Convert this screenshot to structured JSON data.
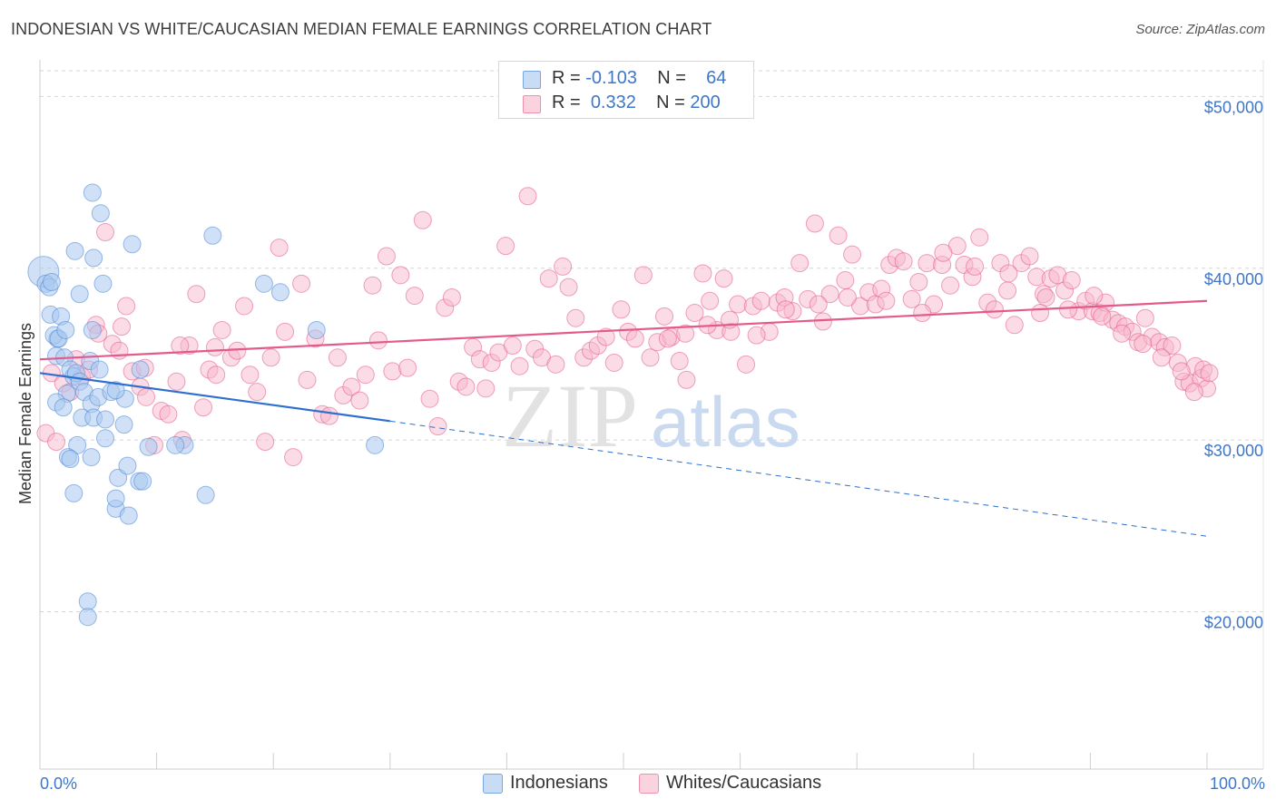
{
  "title": "INDONESIAN VS WHITE/CAUCASIAN MEDIAN FEMALE EARNINGS CORRELATION CHART",
  "source": "Source: ZipAtlas.com",
  "watermark": {
    "zip": "ZIP",
    "atlas": "atlas"
  },
  "legend": {
    "rows": [
      {
        "r_label": "R =",
        "r_value": "-0.103",
        "n_label": "N =",
        "n_value": "64",
        "color": "#a9c8f0"
      },
      {
        "r_label": "R =",
        "r_value": "0.332",
        "n_label": "N =",
        "n_value": "200",
        "color": "#f7b8cb"
      }
    ]
  },
  "bottom_legend": [
    {
      "label": "Indonesians",
      "color": "#a9c8f0"
    },
    {
      "label": "Whites/Caucasians",
      "color": "#f7b8cb"
    }
  ],
  "chart_data": {
    "type": "scatter",
    "title": "INDONESIAN VS WHITE/CAUCASIAN MEDIAN FEMALE EARNINGS CORRELATION CHART",
    "xlabel": "",
    "ylabel": "Median Female Earnings",
    "xlim": [
      0,
      100
    ],
    "ylim": [
      11000,
      51500
    ],
    "x_tick_labels": [
      "0.0%",
      "100.0%"
    ],
    "y_ticks": [
      20000,
      30000,
      40000,
      50000
    ],
    "y_tick_labels": [
      "$20,000",
      "$30,000",
      "$40,000",
      "$50,000"
    ],
    "grid": true,
    "legend_position": "top-center",
    "series": [
      {
        "name": "Indonesians",
        "color": "#4a86d4",
        "fill": "#a9c8f0",
        "trend": {
          "x0": 0,
          "y0": 33900,
          "x1": 30,
          "y1": 31100,
          "dash_to_x": 100,
          "dash_to_y": 24400
        },
        "points": [
          [
            0.3,
            39800
          ],
          [
            0.5,
            39100
          ],
          [
            0.8,
            38900
          ],
          [
            1.0,
            39200
          ],
          [
            0.9,
            37300
          ],
          [
            1.5,
            35900
          ],
          [
            1.8,
            37200
          ],
          [
            1.2,
            36100
          ],
          [
            1.6,
            35900
          ],
          [
            1.4,
            34900
          ],
          [
            2.1,
            34800
          ],
          [
            2.6,
            34100
          ],
          [
            2.9,
            33700
          ],
          [
            3.1,
            33900
          ],
          [
            3.4,
            33400
          ],
          [
            2.3,
            32700
          ],
          [
            1.4,
            32200
          ],
          [
            2.0,
            31900
          ],
          [
            3.8,
            32800
          ],
          [
            4.4,
            32100
          ],
          [
            5.0,
            32500
          ],
          [
            6.1,
            32800
          ],
          [
            3.6,
            31300
          ],
          [
            4.6,
            31300
          ],
          [
            5.6,
            31200
          ],
          [
            7.3,
            32400
          ],
          [
            8.6,
            34100
          ],
          [
            3.2,
            29700
          ],
          [
            2.4,
            29000
          ],
          [
            2.6,
            28900
          ],
          [
            7.2,
            30900
          ],
          [
            5.6,
            30100
          ],
          [
            9.3,
            29600
          ],
          [
            12.4,
            29700
          ],
          [
            4.5,
            36400
          ],
          [
            2.2,
            36400
          ],
          [
            2.9,
            26900
          ],
          [
            6.5,
            26000
          ],
          [
            7.6,
            25600
          ],
          [
            6.7,
            27800
          ],
          [
            8.5,
            27600
          ],
          [
            6.5,
            26600
          ],
          [
            8.8,
            27600
          ],
          [
            7.5,
            28500
          ],
          [
            14.2,
            26800
          ],
          [
            4.3,
            34600
          ],
          [
            5.1,
            34100
          ],
          [
            6.5,
            32900
          ],
          [
            4.4,
            29000
          ],
          [
            11.6,
            29700
          ],
          [
            3.0,
            41000
          ],
          [
            4.6,
            40600
          ],
          [
            5.4,
            39100
          ],
          [
            3.4,
            38500
          ],
          [
            7.9,
            41400
          ],
          [
            4.5,
            44400
          ],
          [
            5.2,
            43200
          ],
          [
            14.8,
            41900
          ],
          [
            19.2,
            39100
          ],
          [
            20.6,
            38600
          ],
          [
            23.7,
            36400
          ],
          [
            28.7,
            29700
          ],
          [
            4.1,
            20600
          ],
          [
            4.1,
            19700
          ]
        ]
      },
      {
        "name": "Whites/Caucasians",
        "color": "#e35a8b",
        "fill": "#f7b8cb",
        "trend": {
          "x0": 0,
          "y0": 34700,
          "x1": 100,
          "y1": 38100
        },
        "points": [
          [
            0.5,
            30400
          ],
          [
            1.0,
            33900
          ],
          [
            1.4,
            29900
          ],
          [
            2.0,
            33300
          ],
          [
            2.6,
            32800
          ],
          [
            3.1,
            34700
          ],
          [
            3.6,
            33700
          ],
          [
            4.2,
            34100
          ],
          [
            4.8,
            36700
          ],
          [
            5.6,
            42100
          ],
          [
            6.2,
            35600
          ],
          [
            6.8,
            35200
          ],
          [
            7.4,
            37800
          ],
          [
            7.9,
            34000
          ],
          [
            8.6,
            33100
          ],
          [
            9.1,
            32500
          ],
          [
            9.8,
            29700
          ],
          [
            10.4,
            31700
          ],
          [
            11.0,
            31500
          ],
          [
            11.7,
            33400
          ],
          [
            12.2,
            30000
          ],
          [
            12.8,
            35500
          ],
          [
            13.4,
            38500
          ],
          [
            14.0,
            31900
          ],
          [
            14.5,
            34100
          ],
          [
            15.1,
            33800
          ],
          [
            15.6,
            36400
          ],
          [
            16.4,
            34800
          ],
          [
            16.9,
            35200
          ],
          [
            17.5,
            37800
          ],
          [
            18.0,
            33800
          ],
          [
            18.6,
            32800
          ],
          [
            19.3,
            29900
          ],
          [
            19.8,
            34800
          ],
          [
            20.5,
            41200
          ],
          [
            21.0,
            36300
          ],
          [
            21.7,
            29000
          ],
          [
            22.4,
            39100
          ],
          [
            22.9,
            33500
          ],
          [
            23.6,
            35900
          ],
          [
            24.2,
            31500
          ],
          [
            24.8,
            31400
          ],
          [
            25.5,
            34800
          ],
          [
            26.0,
            32600
          ],
          [
            26.7,
            33100
          ],
          [
            27.4,
            32300
          ],
          [
            27.9,
            33800
          ],
          [
            28.5,
            39000
          ],
          [
            29.0,
            35800
          ],
          [
            29.7,
            40700
          ],
          [
            30.2,
            34000
          ],
          [
            30.9,
            39600
          ],
          [
            31.5,
            34200
          ],
          [
            32.1,
            38400
          ],
          [
            32.8,
            42800
          ],
          [
            33.4,
            32400
          ],
          [
            34.1,
            30800
          ],
          [
            34.7,
            37700
          ],
          [
            35.3,
            38300
          ],
          [
            35.9,
            33400
          ],
          [
            36.5,
            33100
          ],
          [
            37.1,
            35400
          ],
          [
            37.7,
            34700
          ],
          [
            38.2,
            33000
          ],
          [
            38.7,
            34500
          ],
          [
            39.3,
            35100
          ],
          [
            39.9,
            41300
          ],
          [
            40.5,
            35500
          ],
          [
            41.1,
            34300
          ],
          [
            41.8,
            44200
          ],
          [
            42.4,
            35300
          ],
          [
            43.0,
            34800
          ],
          [
            43.6,
            39400
          ],
          [
            44.2,
            34400
          ],
          [
            44.8,
            40100
          ],
          [
            45.3,
            38900
          ],
          [
            45.9,
            37100
          ],
          [
            46.6,
            34800
          ],
          [
            47.2,
            35200
          ],
          [
            47.8,
            35500
          ],
          [
            48.5,
            36000
          ],
          [
            49.2,
            34500
          ],
          [
            49.8,
            37600
          ],
          [
            50.4,
            36300
          ],
          [
            51.0,
            35900
          ],
          [
            51.7,
            39600
          ],
          [
            52.3,
            34800
          ],
          [
            52.9,
            35700
          ],
          [
            53.5,
            37200
          ],
          [
            54.1,
            36000
          ],
          [
            54.8,
            34600
          ],
          [
            55.4,
            33500
          ],
          [
            56.1,
            37400
          ],
          [
            56.8,
            39700
          ],
          [
            57.4,
            38100
          ],
          [
            58.0,
            36400
          ],
          [
            58.6,
            39400
          ],
          [
            59.2,
            36300
          ],
          [
            59.8,
            37900
          ],
          [
            60.5,
            34400
          ],
          [
            61.1,
            37800
          ],
          [
            61.8,
            38100
          ],
          [
            62.5,
            36300
          ],
          [
            63.2,
            38000
          ],
          [
            63.8,
            38300
          ],
          [
            64.5,
            37500
          ],
          [
            65.1,
            40300
          ],
          [
            65.8,
            38200
          ],
          [
            66.4,
            42600
          ],
          [
            67.1,
            36900
          ],
          [
            67.7,
            38500
          ],
          [
            68.4,
            41900
          ],
          [
            69.0,
            39300
          ],
          [
            69.6,
            40800
          ],
          [
            70.3,
            37800
          ],
          [
            71.0,
            38600
          ],
          [
            71.6,
            37900
          ],
          [
            72.1,
            38800
          ],
          [
            72.8,
            40200
          ],
          [
            73.4,
            40600
          ],
          [
            74.0,
            40400
          ],
          [
            74.7,
            38200
          ],
          [
            75.3,
            39200
          ],
          [
            76.0,
            40300
          ],
          [
            76.6,
            37900
          ],
          [
            77.3,
            40200
          ],
          [
            78.0,
            39000
          ],
          [
            78.6,
            41300
          ],
          [
            79.2,
            40200
          ],
          [
            79.9,
            39500
          ],
          [
            80.5,
            41800
          ],
          [
            81.2,
            38000
          ],
          [
            81.8,
            37600
          ],
          [
            82.3,
            40300
          ],
          [
            82.9,
            38700
          ],
          [
            83.5,
            36700
          ],
          [
            84.1,
            40300
          ],
          [
            84.8,
            40700
          ],
          [
            85.4,
            39500
          ],
          [
            86.0,
            38500
          ],
          [
            86.6,
            39400
          ],
          [
            87.2,
            39600
          ],
          [
            87.8,
            38700
          ],
          [
            88.4,
            39300
          ],
          [
            89.0,
            37500
          ],
          [
            89.6,
            38100
          ],
          [
            90.2,
            37500
          ],
          [
            90.8,
            37400
          ],
          [
            91.3,
            38000
          ],
          [
            91.9,
            37000
          ],
          [
            92.4,
            36800
          ],
          [
            93.0,
            36600
          ],
          [
            93.6,
            36300
          ],
          [
            94.1,
            35700
          ],
          [
            94.7,
            37100
          ],
          [
            95.3,
            36000
          ],
          [
            95.9,
            35700
          ],
          [
            96.4,
            35400
          ],
          [
            97.0,
            35500
          ],
          [
            97.5,
            34500
          ],
          [
            98.0,
            33400
          ],
          [
            98.5,
            33300
          ],
          [
            99.0,
            34300
          ],
          [
            99.5,
            33600
          ],
          [
            100.0,
            33000
          ],
          [
            90.3,
            38400
          ],
          [
            86.2,
            38300
          ],
          [
            83.0,
            39700
          ],
          [
            80.1,
            40100
          ],
          [
            77.4,
            40900
          ],
          [
            75.6,
            37400
          ],
          [
            72.5,
            38100
          ],
          [
            69.2,
            38300
          ],
          [
            66.7,
            37900
          ],
          [
            63.9,
            37600
          ],
          [
            61.4,
            36100
          ],
          [
            59.1,
            37000
          ],
          [
            57.2,
            36700
          ],
          [
            55.3,
            36200
          ],
          [
            53.8,
            35900
          ],
          [
            97.8,
            34000
          ],
          [
            96.1,
            34800
          ],
          [
            94.5,
            35600
          ],
          [
            92.7,
            36200
          ],
          [
            91.0,
            37200
          ],
          [
            88.1,
            37600
          ],
          [
            85.7,
            37400
          ],
          [
            98.9,
            32800
          ],
          [
            99.7,
            34100
          ],
          [
            100.2,
            33900
          ],
          [
            5.0,
            36200
          ],
          [
            7.0,
            36600
          ],
          [
            9.0,
            34200
          ],
          [
            12.0,
            35500
          ],
          [
            15.0,
            35400
          ]
        ]
      }
    ]
  }
}
